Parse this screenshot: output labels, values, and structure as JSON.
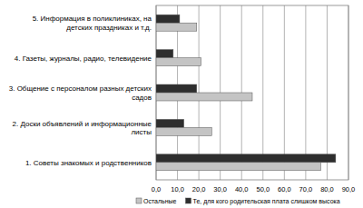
{
  "chart_data": {
    "type": "bar",
    "orientation": "horizontal",
    "categories": [
      "1. Советы знакомых и родственников",
      "2. Доски объявлений и информационные листы",
      "3. Общение с персоналом разных детских садов",
      "4. Газеты, журналы, радио, телевидение",
      "5. Информация в поликлиниках, на детских праздниках и т.д."
    ],
    "series": [
      {
        "name": "Те, для кого родительская плата слишком высока",
        "color": "#2e2e2e",
        "values": [
          84,
          13,
          19,
          8,
          11
        ]
      },
      {
        "name": "Остальные",
        "color": "#c4c4c4",
        "values": [
          77,
          26,
          45,
          21,
          19
        ]
      }
    ],
    "xlim": [
      0,
      90
    ],
    "xticks": [
      {
        "value": 0,
        "label": "0,0"
      },
      {
        "value": 10,
        "label": "10,0"
      },
      {
        "value": 20,
        "label": "20,0"
      },
      {
        "value": 30,
        "label": "30,0"
      },
      {
        "value": 40,
        "label": "40,0"
      },
      {
        "value": 50,
        "label": "50,0"
      },
      {
        "value": 60,
        "label": "60,0"
      },
      {
        "value": 70,
        "label": "70,0"
      },
      {
        "value": 80,
        "label": "80,0"
      },
      {
        "value": 90,
        "label": "90,0"
      }
    ],
    "grid": true,
    "legend": "bottom"
  }
}
